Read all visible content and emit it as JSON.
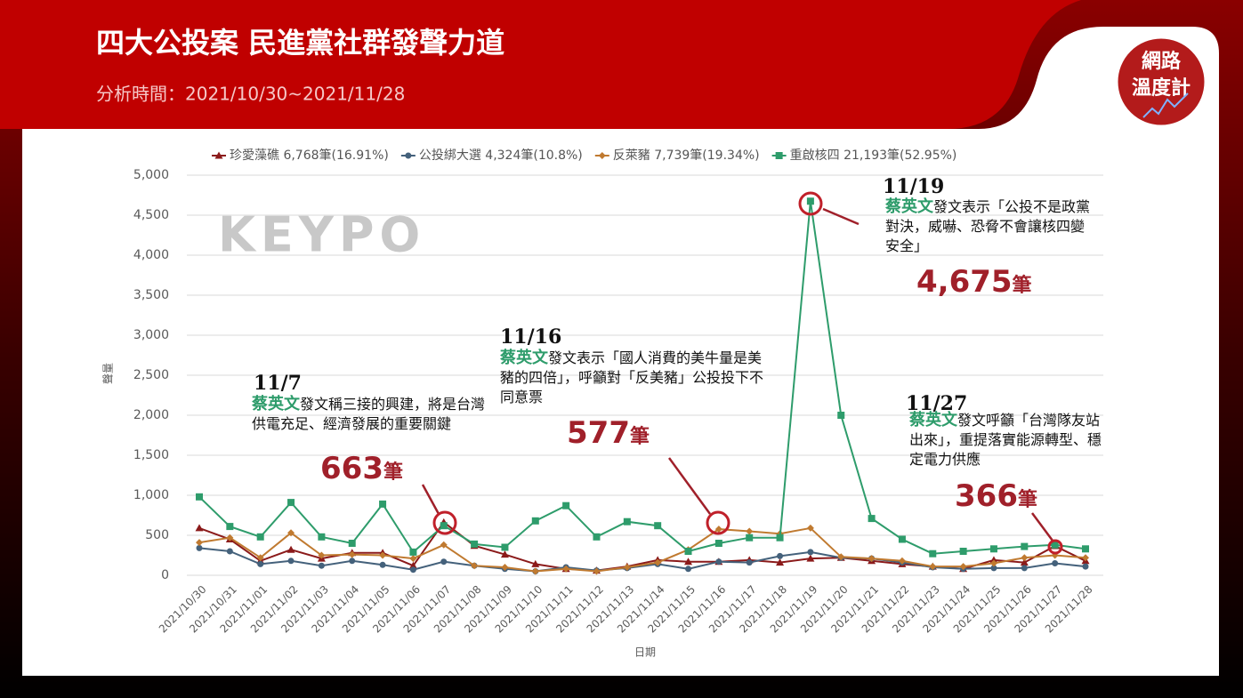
{
  "header": {
    "title": "四大公投案 民進黨社群發聲力道",
    "subtitle": "分析時間：2021/10/30~2021/11/28"
  },
  "logo": {
    "line1": "網路",
    "line2": "溫度計"
  },
  "watermark": "KEYPO",
  "chart_data": {
    "type": "line",
    "x_label": "日期",
    "y_label": "聲量",
    "categories": [
      "2021/10/30",
      "2021/10/31",
      "2021/11/01",
      "2021/11/02",
      "2021/11/03",
      "2021/11/04",
      "2021/11/05",
      "2021/11/06",
      "2021/11/07",
      "2021/11/08",
      "2021/11/09",
      "2021/11/10",
      "2021/11/11",
      "2021/11/12",
      "2021/11/13",
      "2021/11/14",
      "2021/11/15",
      "2021/11/16",
      "2021/11/17",
      "2021/11/18",
      "2021/11/19",
      "2021/11/20",
      "2021/11/21",
      "2021/11/22",
      "2021/11/23",
      "2021/11/24",
      "2021/11/25",
      "2021/11/26",
      "2021/11/27",
      "2021/11/28"
    ],
    "ylim": [
      0,
      5000
    ],
    "yticks": [
      0,
      500,
      {
        "value": 1000,
        "label": "1,000"
      },
      {
        "value": 1500,
        "label": "1,500"
      },
      {
        "value": 2000,
        "label": "2,000"
      },
      {
        "value": 2500,
        "label": "2,500"
      },
      {
        "value": 3000,
        "label": "3,000"
      },
      {
        "value": 3500,
        "label": "3,500"
      },
      {
        "value": 4000,
        "label": "4,000"
      },
      {
        "value": 4500,
        "label": "4,500"
      },
      {
        "value": 5000,
        "label": "5,000"
      }
    ],
    "grid": true,
    "series": [
      {
        "name": "珍愛藻礁 6,768筆(16.91%)",
        "color": "#8b1a1a",
        "marker": "triangle",
        "values": [
          590,
          450,
          180,
          320,
          210,
          280,
          280,
          120,
          663,
          370,
          260,
          140,
          80,
          60,
          110,
          190,
          170,
          170,
          190,
          160,
          210,
          220,
          180,
          140,
          110,
          80,
          190,
          160,
          366,
          180
        ]
      },
      {
        "name": "公投綁大選 4,324筆(10.8%)",
        "color": "#44617b",
        "marker": "circle",
        "values": [
          340,
          300,
          140,
          180,
          120,
          180,
          130,
          70,
          170,
          120,
          80,
          50,
          100,
          60,
          90,
          140,
          80,
          170,
          160,
          240,
          290,
          220,
          210,
          160,
          100,
          80,
          90,
          90,
          150,
          110
        ]
      },
      {
        "name": "反萊豬 7,739筆(19.34%)",
        "color": "#c07a30",
        "marker": "diamond",
        "values": [
          410,
          470,
          220,
          530,
          250,
          260,
          250,
          210,
          380,
          120,
          100,
          50,
          80,
          50,
          100,
          160,
          320,
          577,
          550,
          520,
          590,
          230,
          210,
          180,
          110,
          110,
          150,
          220,
          250,
          220
        ]
      },
      {
        "name": "重啟核四 21,193筆(52.95%)",
        "color": "#2e9c6b",
        "marker": "square",
        "values": [
          980,
          610,
          480,
          910,
          480,
          400,
          890,
          290,
          620,
          390,
          350,
          680,
          870,
          480,
          670,
          620,
          300,
          400,
          470,
          470,
          4675,
          2000,
          710,
          450,
          270,
          300,
          330,
          360,
          380,
          330
        ]
      }
    ],
    "annotations": [
      {
        "date": "11/7",
        "speaker": "蔡英文",
        "text": "發文稱三接的興建，將是台灣供電充足、經濟發展的重要關鍵",
        "count": "663",
        "unit": "筆"
      },
      {
        "date": "11/16",
        "speaker": "蔡英文",
        "text": "發文表示「國人消費的美牛量是美豬的四倍」，呼籲對「反美豬」公投投下不同意票",
        "count": "577",
        "unit": "筆"
      },
      {
        "date": "11/19",
        "speaker": "蔡英文",
        "text": "發文表示「公投不是政黨對決，威嚇、恐脅不會讓核四變安全」",
        "count": "4,675",
        "unit": "筆"
      },
      {
        "date": "11/27",
        "speaker": "蔡英文",
        "text": "發文呼籲「台灣隊友站出來」，重提落實能源轉型、穩定電力供應",
        "count": "366",
        "unit": "筆"
      }
    ]
  }
}
